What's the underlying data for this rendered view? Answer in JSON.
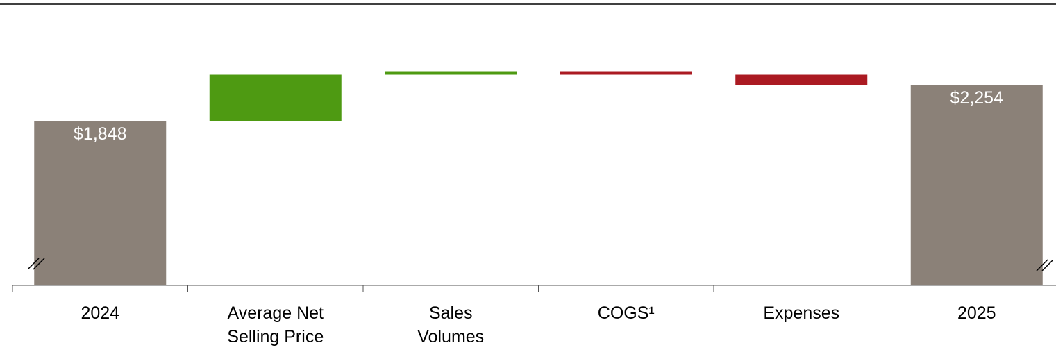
{
  "chart_data": {
    "type": "waterfall",
    "categories": [
      "2024",
      "Average Net\nSelling Price",
      "Sales\nVolumes",
      "COGS¹",
      "Expenses",
      "2025"
    ],
    "measure": [
      "total",
      "relative",
      "relative",
      "relative",
      "relative",
      "total"
    ],
    "values": [
      1848,
      523,
      39,
      -39,
      -117,
      2254
    ],
    "value_labels": [
      "$1,848",
      null,
      null,
      null,
      null,
      "$2,254"
    ],
    "colors": {
      "total": "#8b8178",
      "increase": "#4e9a12",
      "decrease": "#ab1a22"
    },
    "ylim": [
      0,
      3000
    ],
    "axis_break": true
  }
}
